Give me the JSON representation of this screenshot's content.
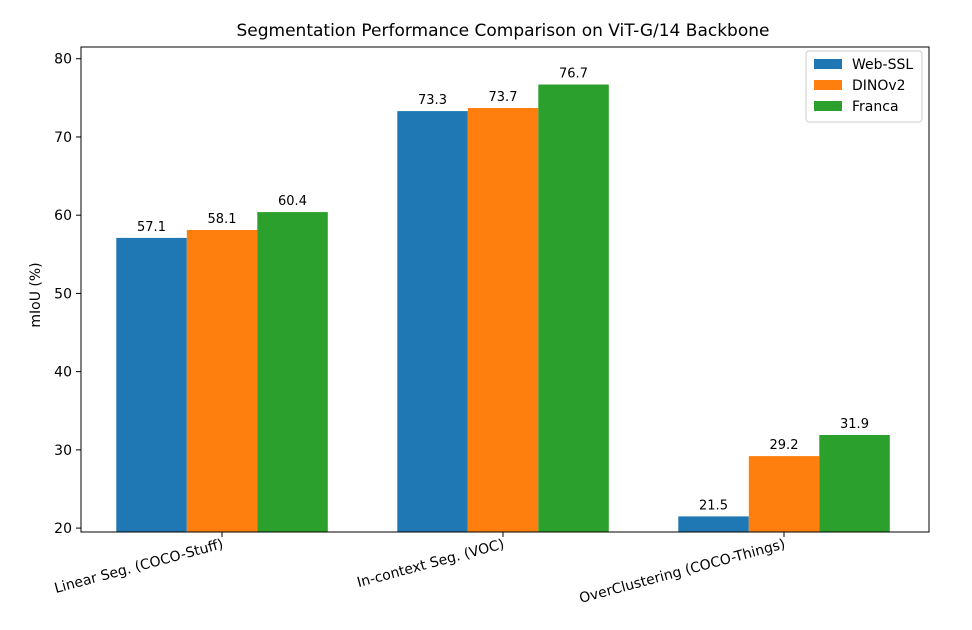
{
  "chart_data": {
    "type": "bar",
    "title": "Segmentation Performance Comparison on ViT-G/14 Backbone",
    "xlabel": "",
    "ylabel": "mIoU (%)",
    "ylim": [
      19.5,
      81.5
    ],
    "yticks": [
      20,
      30,
      40,
      50,
      60,
      70,
      80
    ],
    "categories": [
      "Linear Seg. (COCO-Stuff)",
      "In-context Seg. (VOC)",
      "OverClustering (COCO-Things)"
    ],
    "series": [
      {
        "name": "Web-SSL",
        "color": "#1f77b4",
        "values": [
          57.1,
          73.3,
          21.5
        ]
      },
      {
        "name": "DINOv2",
        "color": "#ff7f0e",
        "values": [
          58.1,
          73.7,
          29.2
        ]
      },
      {
        "name": "Franca",
        "color": "#2ca02c",
        "values": [
          60.4,
          76.7,
          31.9
        ]
      }
    ],
    "legend_position": "top-right",
    "grid": false
  }
}
